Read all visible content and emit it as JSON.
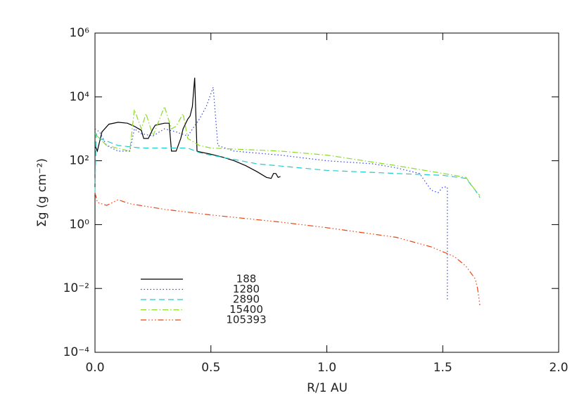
{
  "chart_data": {
    "type": "line",
    "x_label": "R/1 AU",
    "y_label": "Σg (g cm⁻²)",
    "yscale": "log",
    "xlim": [
      0,
      2
    ],
    "xticks": [
      {
        "value": 0,
        "label": "0.0"
      },
      0.5,
      {
        "value": 1,
        "label": "1.0"
      },
      1.5,
      {
        "value": 2,
        "label": "2.0"
      }
    ],
    "ylim": [
      0.0001,
      1000000
    ],
    "yticks": [
      {
        "value": 0.0001,
        "label": "10⁻⁴"
      },
      {
        "value": 0.01,
        "label": "10⁻²"
      },
      {
        "value": 1,
        "label": "10⁰"
      },
      {
        "value": 100,
        "label": "10²"
      },
      {
        "value": 10000,
        "label": "10⁴"
      },
      {
        "value": 1000000,
        "label": "10⁶"
      }
    ],
    "legend": "lower left",
    "series": [
      {
        "name": "188",
        "color": "#000000",
        "linestyle": "solid",
        "x": [
          0.0,
          0.01,
          0.03,
          0.06,
          0.1,
          0.14,
          0.17,
          0.2,
          0.21,
          0.23,
          0.25,
          0.26,
          0.3,
          0.32,
          0.33,
          0.35,
          0.37,
          0.38,
          0.4,
          0.41,
          0.42,
          0.43,
          0.44,
          0.45,
          0.5,
          0.55,
          0.6,
          0.65,
          0.7,
          0.74,
          0.76,
          0.77,
          0.78,
          0.79,
          0.8
        ],
        "values": [
          300,
          200,
          800,
          1400,
          1600,
          1500,
          1200,
          900,
          500,
          500,
          1000,
          1300,
          1500,
          1500,
          200,
          200,
          500,
          1000,
          2000,
          2500,
          5000,
          40000,
          200,
          190,
          160,
          130,
          100,
          70,
          45,
          30,
          28,
          40,
          40,
          30,
          32
        ]
      },
      {
        "name": "1280",
        "color": "#3344ee",
        "linestyle": "dotted",
        "x": [
          0,
          0.02,
          0.05,
          0.1,
          0.15,
          0.17,
          0.2,
          0.25,
          0.3,
          0.35,
          0.4,
          0.45,
          0.48,
          0.51,
          0.53,
          0.6,
          0.8,
          1.0,
          1.2,
          1.3,
          1.4,
          1.45,
          1.48,
          1.5,
          1.52,
          1.52
        ],
        "values": [
          1000,
          800,
          300,
          200,
          200,
          1000,
          700,
          600,
          1000,
          800,
          600,
          2000,
          5000,
          20000,
          300,
          200,
          150,
          100,
          80,
          60,
          40,
          12,
          10,
          15,
          15,
          0.004
        ]
      },
      {
        "name": "2890",
        "color": "#22cccc",
        "linestyle": "dashed",
        "x": [
          0,
          0.005,
          0.02,
          0.1,
          0.2,
          0.3,
          0.4,
          0.45,
          0.5,
          0.7,
          1.0,
          1.3,
          1.5,
          1.6,
          1.64,
          1.66
        ],
        "values": [
          10,
          700,
          500,
          300,
          250,
          250,
          250,
          180,
          150,
          80,
          50,
          40,
          35,
          28,
          12,
          7
        ]
      },
      {
        "name": "15400",
        "color": "#88dd22",
        "linestyle": "dashdot",
        "x": [
          0,
          0.05,
          0.15,
          0.17,
          0.2,
          0.22,
          0.25,
          0.3,
          0.33,
          0.35,
          0.38,
          0.4,
          0.45,
          0.5,
          0.8,
          1.0,
          1.3,
          1.55,
          1.6,
          1.63,
          1.66
        ],
        "values": [
          700,
          300,
          200,
          4000,
          1000,
          3000,
          600,
          5000,
          1000,
          1200,
          3000,
          500,
          300,
          250,
          200,
          150,
          70,
          35,
          30,
          15,
          8
        ]
      },
      {
        "name": "105393",
        "color": "#ee4411",
        "linestyle": "dashdotdotdot",
        "x": [
          0,
          0.01,
          0.05,
          0.1,
          0.15,
          0.3,
          0.5,
          0.8,
          1.0,
          1.3,
          1.45,
          1.55,
          1.6,
          1.64,
          1.65,
          1.66
        ],
        "values": [
          10,
          5,
          4,
          6,
          4.5,
          3,
          2,
          1.2,
          0.8,
          0.4,
          0.2,
          0.1,
          0.05,
          0.02,
          0.01,
          0.003
        ]
      }
    ]
  }
}
